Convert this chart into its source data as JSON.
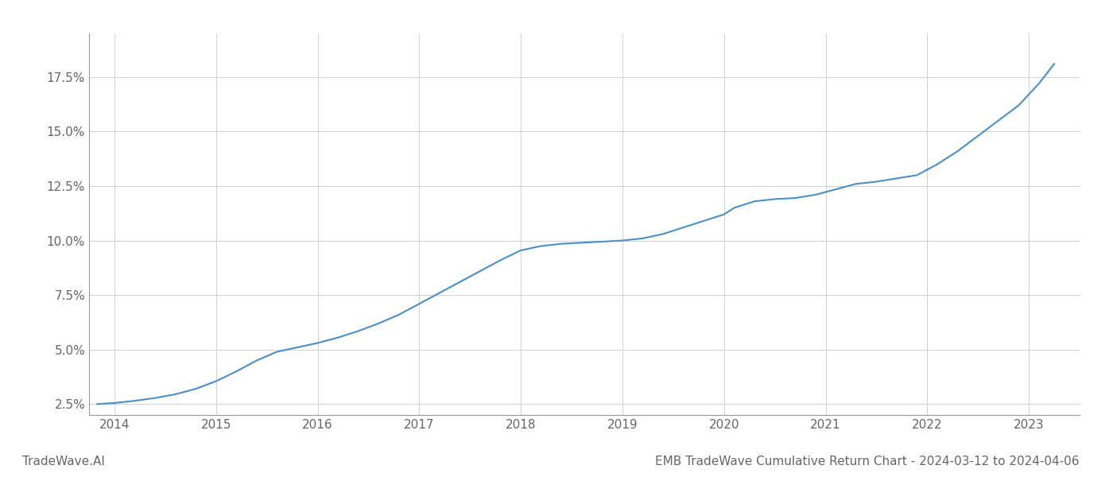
{
  "title": "EMB TradeWave Cumulative Return Chart - 2024-03-12 to 2024-04-06",
  "watermark": "TradeWave.AI",
  "line_color": "#4a90c4",
  "background_color": "#ffffff",
  "grid_color": "#cccccc",
  "x_years": [
    2014,
    2015,
    2016,
    2017,
    2018,
    2019,
    2020,
    2021,
    2022,
    2023
  ],
  "x_data": [
    2013.83,
    2014.0,
    2014.2,
    2014.4,
    2014.6,
    2014.8,
    2015.0,
    2015.2,
    2015.4,
    2015.6,
    2015.8,
    2016.0,
    2016.2,
    2016.4,
    2016.6,
    2016.8,
    2017.0,
    2017.2,
    2017.4,
    2017.6,
    2017.8,
    2018.0,
    2018.2,
    2018.4,
    2018.6,
    2018.8,
    2019.0,
    2019.2,
    2019.4,
    2019.6,
    2019.8,
    2020.0,
    2020.1,
    2020.3,
    2020.5,
    2020.7,
    2020.9,
    2021.1,
    2021.3,
    2021.5,
    2021.7,
    2021.9,
    2022.1,
    2022.3,
    2022.5,
    2022.7,
    2022.9,
    2023.1,
    2023.25
  ],
  "y_data": [
    2.5,
    2.55,
    2.65,
    2.78,
    2.95,
    3.2,
    3.55,
    4.0,
    4.5,
    4.9,
    5.1,
    5.3,
    5.55,
    5.85,
    6.2,
    6.6,
    7.1,
    7.6,
    8.1,
    8.6,
    9.1,
    9.55,
    9.75,
    9.85,
    9.9,
    9.95,
    10.0,
    10.1,
    10.3,
    10.6,
    10.9,
    11.2,
    11.5,
    11.8,
    11.9,
    11.95,
    12.1,
    12.35,
    12.6,
    12.7,
    12.85,
    13.0,
    13.5,
    14.1,
    14.8,
    15.5,
    16.2,
    17.2,
    18.1
  ],
  "ylim": [
    2.0,
    19.5
  ],
  "yticks": [
    2.5,
    5.0,
    7.5,
    10.0,
    12.5,
    15.0,
    17.5
  ],
  "xlim": [
    2013.75,
    2023.5
  ],
  "line_width": 1.5,
  "title_fontsize": 11,
  "watermark_fontsize": 11,
  "tick_fontsize": 11,
  "tick_color": "#666666",
  "spine_color": "#999999"
}
